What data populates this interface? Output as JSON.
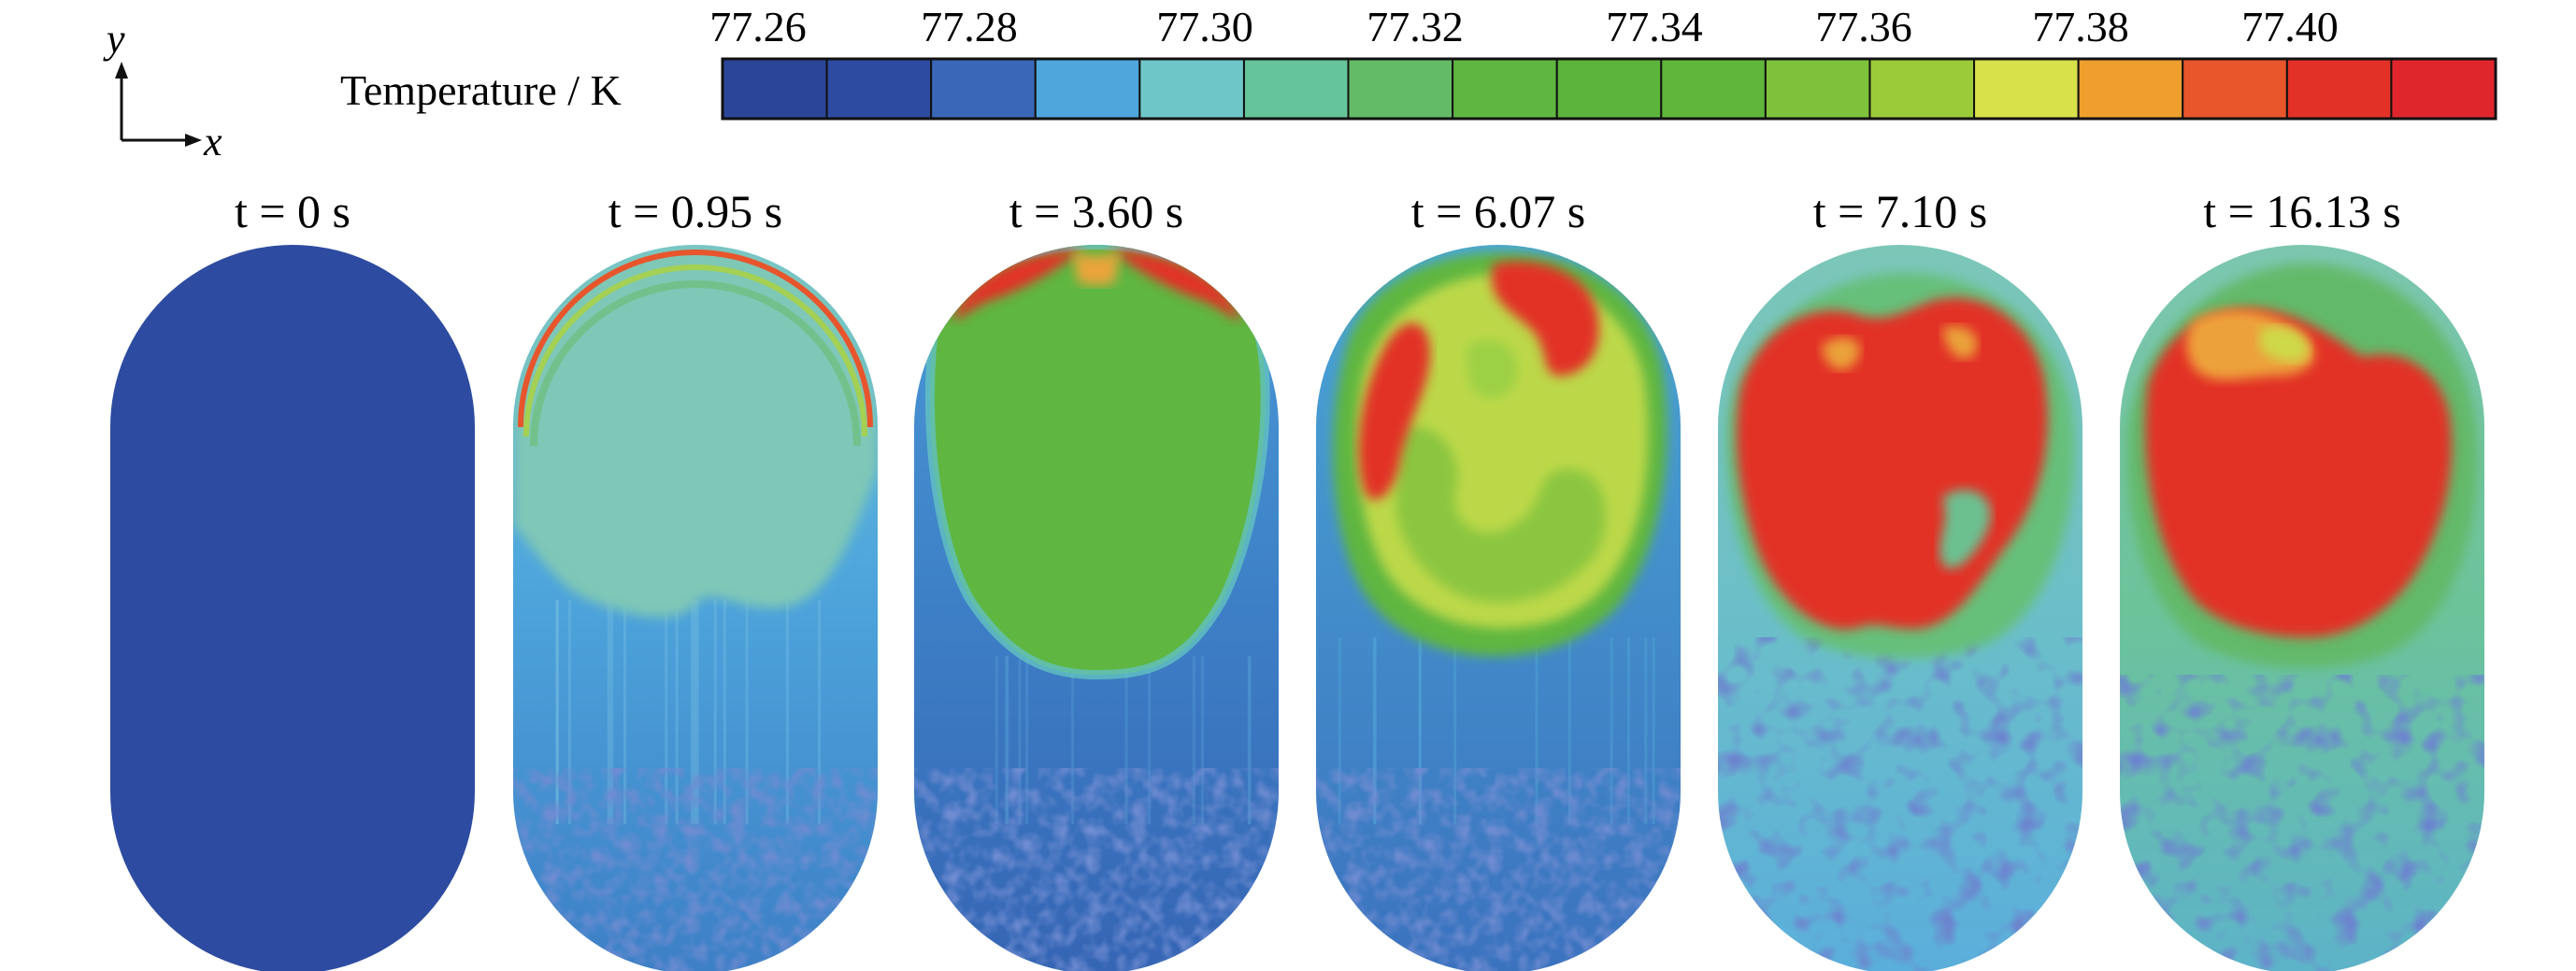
{
  "axes": {
    "y_label": "y",
    "x_label": "x"
  },
  "colorbar": {
    "label": "Temperature / K",
    "tick_labels": [
      "77.26",
      "77.28",
      "77.30",
      "77.32",
      "77.34",
      "77.36",
      "77.38",
      "77.40"
    ],
    "colors": [
      "#2b4699",
      "#2d4ba0",
      "#3a67b8",
      "#4ea6dc",
      "#6ec6c8",
      "#66c49a",
      "#63bb67",
      "#5fb641",
      "#5cb43c",
      "#60b63a",
      "#7dc23a",
      "#9ccb3a",
      "#d8e04a",
      "#ee9f2d",
      "#e9562c",
      "#e23127",
      "#e0262d"
    ]
  },
  "panels": [
    {
      "time_label": "t = 0 s"
    },
    {
      "time_label": "t = 0.95 s"
    },
    {
      "time_label": "t = 3.60 s"
    },
    {
      "time_label": "t = 6.07 s"
    },
    {
      "time_label": "t = 7.10 s"
    },
    {
      "time_label": "t = 16.13 s"
    }
  ]
}
